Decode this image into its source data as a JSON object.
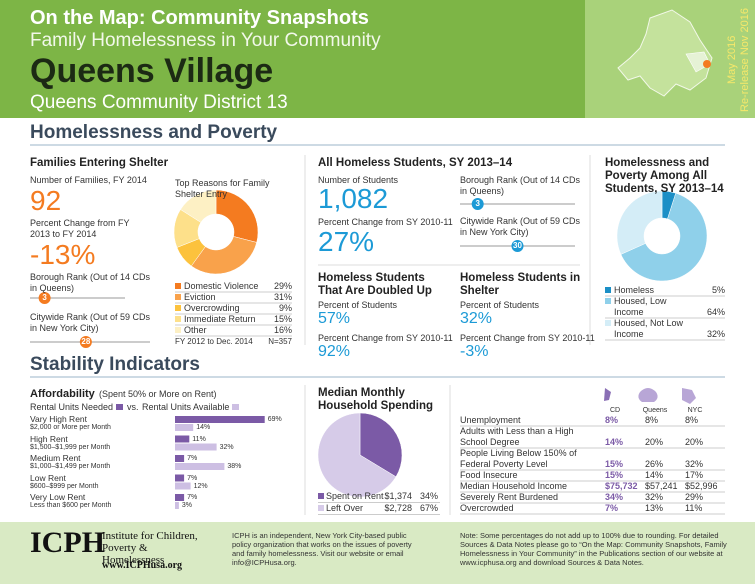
{
  "header": {
    "series_title": "On the Map: Community Snapshots",
    "subtitle": "Family Homelessness in Your Community",
    "title": "Queens Village",
    "district": "Queens Community District 13",
    "date": "May 2016",
    "rerelease": "Re-release Nov 2016"
  },
  "sections": {
    "homelessness": "Homelessness and Poverty",
    "stability": "Stability Indicators"
  },
  "families": {
    "heading": "Families Entering Shelter",
    "number_label": "Number of Families, FY 2014",
    "number": "92",
    "change_label": "Percent Change from FY 2013 to FY 2014",
    "change": "-13%",
    "borough_rank": {
      "label": "Borough Rank (Out of 14 CDs in Queens)",
      "value": 3,
      "of": 14
    },
    "citywide_rank": {
      "label": "Citywide Rank (Out of 59 CDs in New York City)",
      "value": 28,
      "of": 59
    }
  },
  "reasons": {
    "type": "pie",
    "title": "Top Reasons for Family Shelter Entry",
    "categories": [
      "Domestic Violence",
      "Eviction",
      "Overcrowding",
      "Immediate Return",
      "Other"
    ],
    "values": [
      29,
      31,
      9,
      15,
      16
    ],
    "value_labels": [
      "29%",
      "31%",
      "9%",
      "15%",
      "16%"
    ],
    "colors": [
      "#f47b20",
      "#f9a24b",
      "#fcc23d",
      "#fde08a",
      "#fdf0c4"
    ],
    "period": "FY 2012 to Dec. 2014",
    "n": "N=357"
  },
  "students": {
    "heading": "All Homeless Students, SY 2013–14",
    "number_label": "Number of Students",
    "number": "1,082",
    "change_label": "Percent Change from SY 2010-11",
    "change": "27%",
    "borough_rank": {
      "label": "Borough Rank (Out of 14 CDs in Queens)",
      "value": 3,
      "of": 14
    },
    "citywide_rank": {
      "label": "Citywide Rank (Out of 59 CDs in New York City)",
      "value": 30,
      "of": 59
    }
  },
  "doubled_up": {
    "heading": "Homeless Students That Are Doubled Up",
    "percent_label": "Percent of Students",
    "percent": "57%",
    "change_label": "Percent Change from SY 2010-11",
    "change": "92%"
  },
  "in_shelter": {
    "heading": "Homeless Students in Shelter",
    "percent_label": "Percent of Students",
    "percent": "32%",
    "change_label": "Percent Change from SY 2010-11",
    "change": "-3%"
  },
  "student_poverty": {
    "type": "pie",
    "title": "Homelessness and Poverty Among All Students, SY 2013–14",
    "categories": [
      "Homeless",
      "Housed, Low Income",
      "Housed, Not Low Income"
    ],
    "values": [
      5,
      64,
      32
    ],
    "value_labels": [
      "5%",
      "64%",
      "32%"
    ],
    "colors": [
      "#1b8fc6",
      "#8fd0ea",
      "#d4edf7"
    ]
  },
  "affordability": {
    "type": "bar",
    "title": "Affordability",
    "note": "(Spent 50% or More on Rent)",
    "vs": "vs.",
    "categories": [
      "Vary High Rent",
      "High Rent",
      "Medium Rent",
      "Low Rent",
      "Very Low Rent"
    ],
    "ranges": [
      "$2,000 or More per Month",
      "$1,500–$1,999 per Month",
      "$1,000–$1,499 per Month",
      "$600–$999 per Month",
      "Less than $600 per Month"
    ],
    "series": [
      {
        "name": "Rental Units Needed",
        "color": "#7b5aa6",
        "values": [
          69,
          11,
          7,
          7,
          7
        ],
        "value_labels": [
          "69%",
          "11%",
          "7%",
          "7%",
          "7%"
        ]
      },
      {
        "name": "Rental Units Available",
        "color": "#cdbfe3",
        "values": [
          14,
          32,
          38,
          12,
          3
        ],
        "value_labels": [
          "14%",
          "32%",
          "38%",
          "12%",
          "3%"
        ]
      }
    ]
  },
  "spending": {
    "type": "pie",
    "title": "Median Monthly Household Spending",
    "categories": [
      "Spent on Rent",
      "Left Over"
    ],
    "amounts": [
      "$1,374",
      "$2,728"
    ],
    "values": [
      34,
      67
    ],
    "value_labels": [
      "34%",
      "67%"
    ],
    "colors": [
      "#7b5aa6",
      "#d6cbe8"
    ]
  },
  "indicators": {
    "columns": [
      "CD",
      "Queens",
      "NYC"
    ],
    "rows": [
      [
        "Unemployment",
        "8%",
        "8%",
        "8%"
      ],
      [
        "Adults with Less than a High School Degree",
        "14%",
        "20%",
        "20%"
      ],
      [
        "People Living Below 150% of Federal Poverty Level",
        "15%",
        "26%",
        "32%"
      ],
      [
        "Food Insecure",
        "15%",
        "14%",
        "17%"
      ],
      [
        "Median Household Income",
        "$75,732",
        "$57,241",
        "$52,996"
      ],
      [
        "Severely Rent Burdened",
        "34%",
        "32%",
        "29%"
      ],
      [
        "Overcrowded",
        "7%",
        "13%",
        "11%"
      ]
    ]
  },
  "footer": {
    "logo": "ICPH",
    "institute": "Institute for Children, Poverty & Homelessness",
    "url": "www.ICPHusa.org",
    "about": "ICPH is an independent, New York City-based public policy organization that works on the issues of poverty and family homelessness. Visit our website or email info@ICPHusa.org.",
    "note": "Note: Some percentages do not add up to 100% due to rounding. For detailed Sources & Data Notes please go to “On the Map: Community Snapshots, Family Homelessness in Your Community” in the Publications section of our website at www.icphusa.org and download Sources & Data Notes."
  }
}
